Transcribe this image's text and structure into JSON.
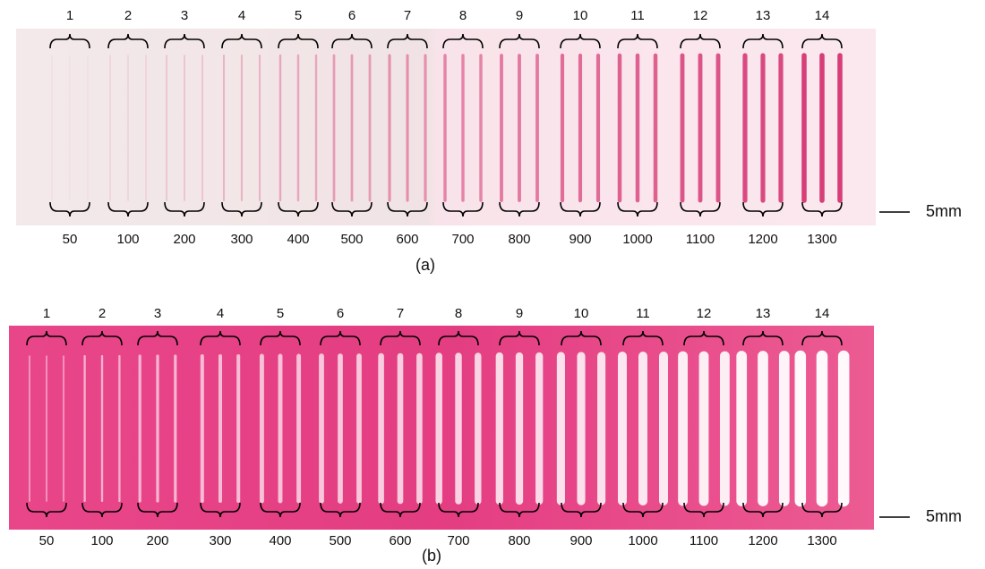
{
  "panels": [
    {
      "caption": "(a)",
      "group_labels": [
        "1",
        "2",
        "3",
        "4",
        "5",
        "6",
        "7",
        "8",
        "9",
        "10",
        "11",
        "12",
        "13",
        "14"
      ],
      "bottom_labels": [
        "50",
        "100",
        "200",
        "300",
        "400",
        "500",
        "600",
        "700",
        "800",
        "900",
        "1000",
        "1100",
        "1200",
        "1300"
      ],
      "scale_label": "5mm"
    },
    {
      "caption": "(b)",
      "group_labels": [
        "1",
        "2",
        "3",
        "4",
        "5",
        "6",
        "7",
        "8",
        "9",
        "10",
        "11",
        "12",
        "13",
        "14"
      ],
      "bottom_labels": [
        "50",
        "100",
        "200",
        "300",
        "400",
        "500",
        "600",
        "700",
        "800",
        "900",
        "1000",
        "1100",
        "1200",
        "1300"
      ],
      "scale_label": "5mm"
    }
  ]
}
